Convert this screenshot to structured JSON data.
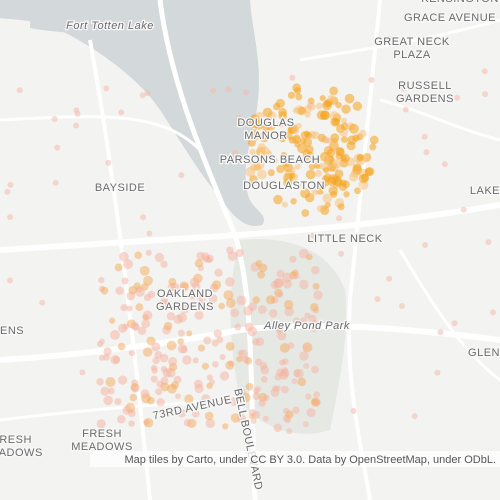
{
  "map": {
    "labels": [
      {
        "lines": [
          "Fort Totten Lake"
        ]
      },
      {
        "lines": [
          "KENSINGTON"
        ]
      },
      {
        "lines": [
          "GRACE AVENUE"
        ]
      },
      {
        "lines": [
          "GREAT NECK",
          "PLAZA"
        ]
      },
      {
        "lines": [
          "RUSSELL",
          "GARDENS"
        ]
      },
      {
        "lines": [
          "DOUGLAS",
          "MANOR"
        ]
      },
      {
        "lines": [
          "PARSONS BEACH"
        ]
      },
      {
        "lines": [
          "DOUGLASTON"
        ]
      },
      {
        "lines": [
          "BAYSIDE"
        ]
      },
      {
        "lines": [
          "LAKE"
        ]
      },
      {
        "lines": [
          "LITTLE NECK"
        ]
      },
      {
        "lines": [
          "OAKLAND",
          "GARDENS"
        ]
      },
      {
        "lines": [
          "Alley Pond Park"
        ]
      },
      {
        "lines": [
          "ENS"
        ]
      },
      {
        "lines": [
          "GLEN"
        ]
      },
      {
        "lines": [
          "73RD AVENUE"
        ]
      },
      {
        "lines": [
          "BELL BOULEVARD"
        ]
      },
      {
        "lines": [
          "FRESH",
          "MEADOWS"
        ]
      },
      {
        "lines": [
          "FRESH",
          "MEADOWS"
        ]
      }
    ],
    "attribution": "Map tiles by Carto, under CC BY 3.0. Data by OpenStreetMap, under ODbL."
  }
}
